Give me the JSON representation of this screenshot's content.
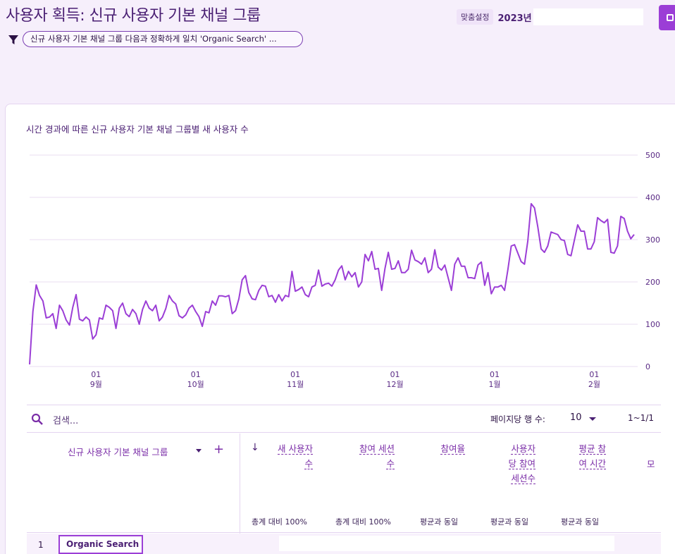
{
  "header": {
    "title": "사용자 획득: 신규 사용자 기본 채널 그룹",
    "filter_text": "신규 사용자 기본 채널 그룹 다음과 정확하게 일치 'Organic Search' ...",
    "date_label": "맞춤설정",
    "date_value": "2023년"
  },
  "chart": {
    "title": "시간 경과에 따른 신규 사용자 기본 채널 그룹별 새 사용자 수"
  },
  "chart_data": {
    "type": "line",
    "ylim": [
      0,
      500
    ],
    "y_ticks": [
      "500",
      "400",
      "300",
      "200",
      "100",
      "0"
    ],
    "x_tick_labels": [
      {
        "day": "01",
        "month": "9월"
      },
      {
        "day": "01",
        "month": "10월"
      },
      {
        "day": "01",
        "month": "11월"
      },
      {
        "day": "01",
        "month": "12월"
      },
      {
        "day": "01",
        "month": "1월"
      },
      {
        "day": "01",
        "month": "2월"
      }
    ],
    "x_tick_index": [
      20,
      50,
      80,
      110,
      140,
      170
    ],
    "color": "#9b3ed6",
    "values": [
      5,
      130,
      193,
      168,
      155,
      115,
      117,
      125,
      90,
      145,
      132,
      110,
      98,
      140,
      170,
      112,
      108,
      117,
      110,
      65,
      75,
      115,
      112,
      145,
      140,
      132,
      90,
      138,
      150,
      125,
      118,
      135,
      125,
      100,
      135,
      155,
      138,
      132,
      145,
      108,
      117,
      137,
      168,
      155,
      148,
      120,
      115,
      122,
      138,
      145,
      130,
      118,
      95,
      130,
      127,
      155,
      145,
      167,
      167,
      165,
      168,
      125,
      132,
      160,
      205,
      215,
      175,
      160,
      158,
      180,
      192,
      190,
      165,
      168,
      152,
      170,
      155,
      168,
      165,
      225,
      178,
      182,
      188,
      170,
      165,
      188,
      192,
      228,
      190,
      195,
      197,
      190,
      205,
      228,
      238,
      205,
      225,
      212,
      222,
      188,
      200,
      265,
      250,
      272,
      230,
      232,
      180,
      232,
      270,
      230,
      232,
      250,
      222,
      222,
      230,
      275,
      252,
      248,
      242,
      257,
      222,
      230,
      276,
      235,
      228,
      240,
      210,
      180,
      242,
      257,
      237,
      237,
      210,
      210,
      208,
      240,
      247,
      192,
      222,
      172,
      188,
      188,
      192,
      180,
      230,
      285,
      288,
      268,
      248,
      242,
      297,
      385,
      375,
      330,
      278,
      270,
      285,
      318,
      315,
      312,
      300,
      298,
      265,
      262,
      298,
      335,
      320,
      320,
      278,
      278,
      295,
      352,
      345,
      340,
      348,
      270,
      268,
      285,
      355,
      350,
      320,
      302,
      312
    ]
  },
  "table": {
    "search_placeholder": "검색...",
    "rows_label": "페이지당 행 수:",
    "rows_value": "10",
    "pagination": "1~1/1",
    "dimension_header": "신규 사용자 기본 채널 그룹",
    "metrics": [
      {
        "lines": [
          "새 사용자",
          "수"
        ],
        "sub": "총계 대비 100%"
      },
      {
        "lines": [
          "참여 세션",
          "수"
        ],
        "sub": "총계 대비 100%"
      },
      {
        "lines": [
          "참여율"
        ],
        "sub": "평균과 동일"
      },
      {
        "lines": [
          "사용자",
          "당 참여",
          "세션수"
        ],
        "sub": "평균과 동일"
      },
      {
        "lines": [
          "평균 참",
          "여 시간"
        ],
        "sub": "평균과 동일"
      }
    ],
    "metric_cut": "모",
    "rows": [
      {
        "num": "1",
        "channel": "Organic Search"
      }
    ]
  },
  "colors": {
    "accent": "#9b3ed6",
    "title": "#4a1f73",
    "background": "#f6effb"
  }
}
